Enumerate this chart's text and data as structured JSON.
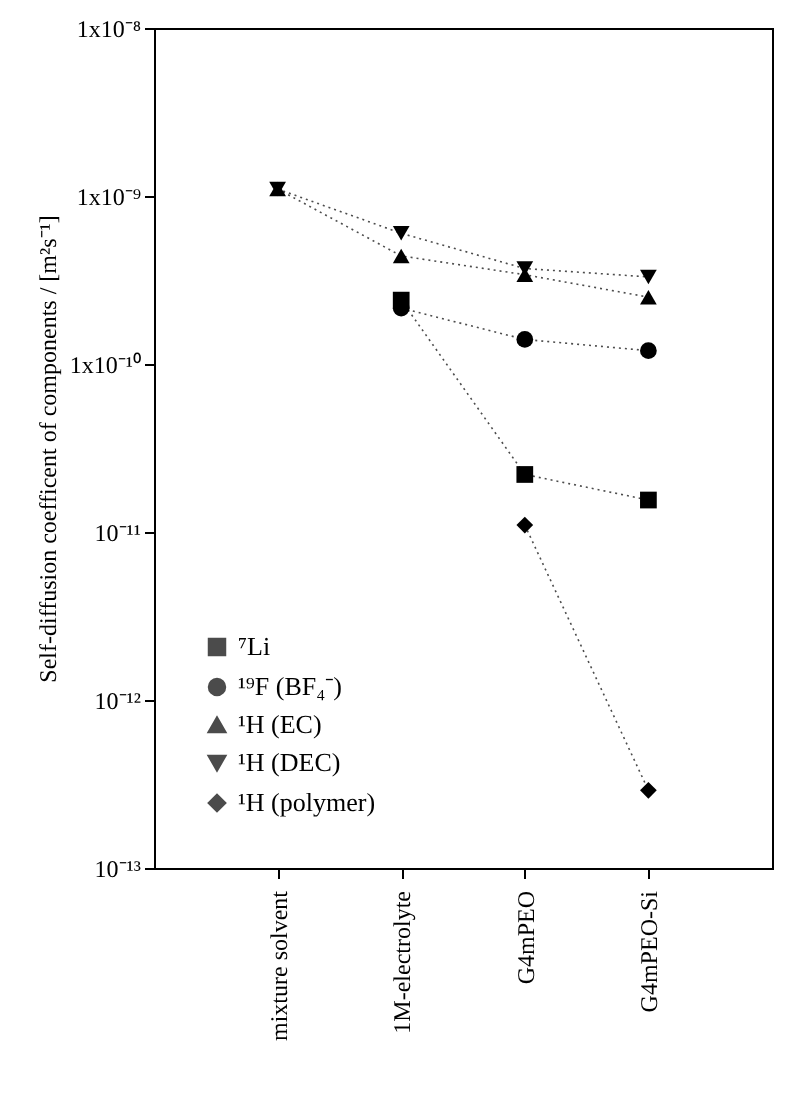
{
  "chart_data": {
    "type": "line",
    "ylabel": "Self-diffusion coefficent of components / [m²s⁻¹]",
    "categories": [
      "mixture solvent",
      "1M-electrolyte",
      "G4mPEO",
      "G4mPEO-Si"
    ],
    "series": [
      {
        "name": "⁷Li",
        "color": "#000000",
        "marker": "square",
        "values": [
          null,
          2.4e-10,
          2.2e-11,
          1.55e-11
        ]
      },
      {
        "name": "¹⁹F (BF₄⁻)",
        "color": "#000000",
        "marker": "circle",
        "values": [
          null,
          2.15e-10,
          1.4e-10,
          1.2e-10
        ]
      },
      {
        "name": "¹H (EC)",
        "color": "#000000",
        "marker": "triangle",
        "values": [
          1.1e-09,
          4.4e-10,
          3.4e-10,
          2.5e-10
        ]
      },
      {
        "name": "¹H (DEC)",
        "color": "#000000",
        "marker": "triangle-down",
        "values": [
          1.1e-09,
          6e-10,
          3.7e-10,
          3.3e-10
        ]
      },
      {
        "name": "¹H (polymer)",
        "color": "#000000",
        "marker": "diamond",
        "values": [
          null,
          null,
          1.1e-11,
          2.9e-13
        ]
      }
    ],
    "log": true,
    "ylim": [
      1e-13,
      1e-08
    ],
    "yticks": [
      {
        "value": 1e-08,
        "label": "1x10⁻⁸"
      },
      {
        "value": 1e-09,
        "label": "1x10⁻⁹"
      },
      {
        "value": 1e-10,
        "label": "1x10⁻¹⁰"
      },
      {
        "value": 1e-11,
        "label": "10⁻¹¹"
      },
      {
        "value": 1e-12,
        "label": "10⁻¹²"
      },
      {
        "value": 1e-13,
        "label": "10⁻¹³"
      }
    ],
    "grid": false,
    "legend": "bottom left",
    "line_style": "dotted"
  }
}
